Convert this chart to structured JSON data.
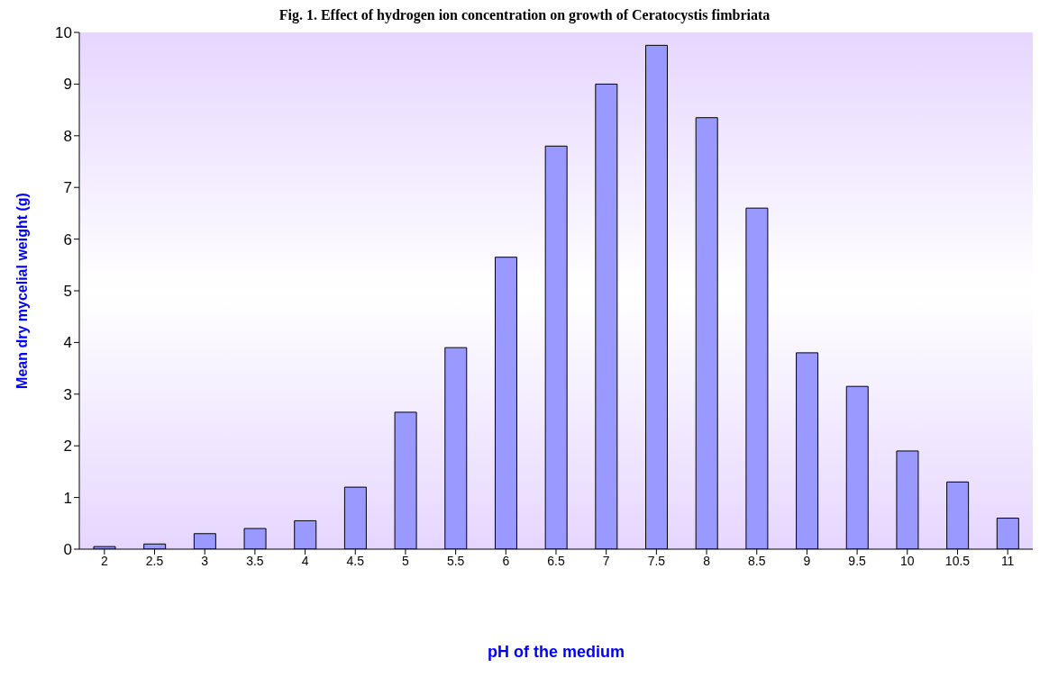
{
  "chart_data": {
    "type": "bar",
    "title": "Fig. 1. Effect of hydrogen ion concentration on growth of Ceratocystis fimbriata",
    "xlabel": "pH of the medium",
    "ylabel": "Mean dry mycelial weight (g)",
    "categories": [
      "2",
      "2.5",
      "3",
      "3.5",
      "4",
      "4.5",
      "5",
      "5.5",
      "6",
      "6.5",
      "7",
      "7.5",
      "8",
      "8.5",
      "9",
      "9.5",
      "10",
      "10.5",
      "11"
    ],
    "values": [
      0.05,
      0.1,
      0.3,
      0.4,
      0.55,
      1.2,
      2.65,
      3.9,
      5.65,
      7.8,
      9.0,
      9.75,
      8.35,
      6.6,
      3.8,
      3.15,
      1.9,
      1.3,
      0.6
    ],
    "color": "#9999ff",
    "ylim": [
      0,
      10
    ],
    "yticks": [
      0,
      1,
      2,
      3,
      4,
      5,
      6,
      7,
      8,
      9,
      10
    ],
    "grid": false,
    "legend": false
  }
}
